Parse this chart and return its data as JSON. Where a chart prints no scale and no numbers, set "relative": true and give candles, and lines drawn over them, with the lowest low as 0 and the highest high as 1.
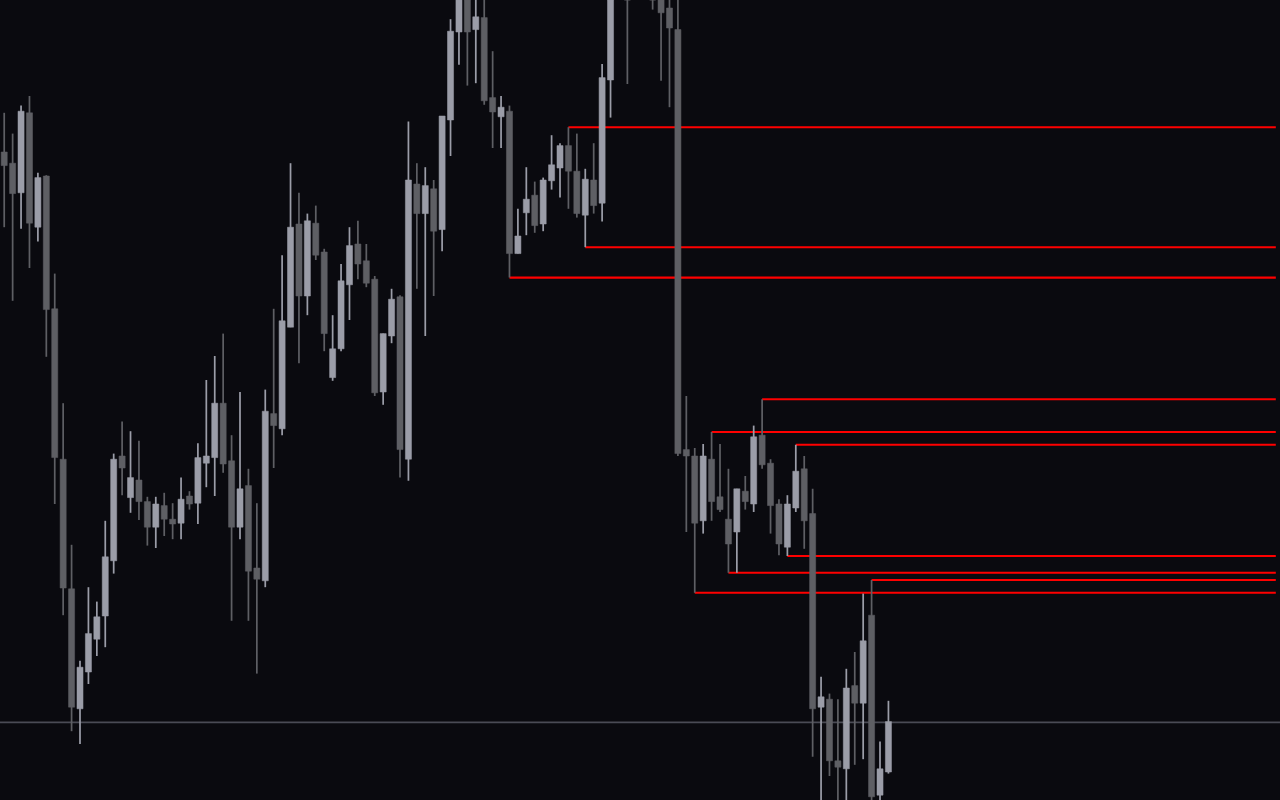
{
  "chart_data": {
    "type": "candlestick",
    "relative": true,
    "categories": [
      null,
      null,
      null,
      null,
      null,
      null,
      null,
      null,
      null,
      null,
      null,
      null,
      null,
      null,
      null,
      null,
      null,
      null,
      null,
      null,
      null,
      null,
      null,
      null,
      null,
      null,
      null,
      null,
      null,
      null,
      null,
      null,
      null,
      null,
      null,
      null,
      null,
      null,
      null,
      null,
      null,
      null,
      null,
      null,
      null,
      null,
      null,
      null,
      null,
      null,
      null,
      null,
      null,
      null,
      null,
      null,
      null,
      null,
      null,
      null,
      null,
      null,
      null,
      null,
      null,
      null,
      null,
      null,
      null,
      null,
      null,
      null,
      null,
      null,
      null,
      null,
      null,
      null,
      null,
      null,
      null,
      null,
      null,
      null,
      null,
      null,
      null,
      null,
      null,
      null,
      null,
      null,
      null,
      null,
      null,
      null,
      null,
      null,
      null,
      null,
      null,
      null,
      null,
      null,
      null,
      null,
      null,
      null,
      null,
      null,
      null,
      null,
      null,
      null,
      null,
      null,
      null,
      null,
      null,
      null,
      null,
      null,
      null,
      null,
      null,
      null,
      null,
      null,
      null,
      null,
      null,
      null,
      null,
      null,
      null,
      null,
      null,
      null,
      null,
      null,
      null,
      null,
      null,
      null,
      null,
      null,
      null,
      null,
      null,
      null,
      null,
      null
    ],
    "ohlc": [
      [
        0.81,
        0.859,
        0.716,
        0.793
      ],
      [
        0.796,
        0.833,
        0.624,
        0.758
      ],
      [
        0.759,
        0.868,
        0.714,
        0.861
      ],
      [
        0.859,
        0.88,
        0.665,
        0.721
      ],
      [
        0.716,
        0.784,
        0.698,
        0.778
      ],
      [
        0.78,
        0.781,
        0.554,
        0.613
      ],
      [
        0.614,
        0.658,
        0.37,
        0.428
      ],
      [
        0.426,
        0.496,
        0.231,
        0.265
      ],
      [
        0.264,
        0.319,
        0.086,
        0.116
      ],
      [
        0.114,
        0.174,
        0.07,
        0.166
      ],
      [
        0.16,
        0.266,
        0.145,
        0.208
      ],
      [
        0.201,
        0.248,
        0.18,
        0.229
      ],
      [
        0.23,
        0.349,
        0.191,
        0.304
      ],
      [
        0.299,
        0.433,
        0.283,
        0.426
      ],
      [
        0.43,
        0.473,
        0.381,
        0.415
      ],
      [
        0.378,
        0.461,
        0.359,
        0.403
      ],
      [
        0.4,
        0.449,
        0.35,
        0.373
      ],
      [
        0.373,
        0.379,
        0.318,
        0.341
      ],
      [
        0.341,
        0.379,
        0.315,
        0.37
      ],
      [
        0.368,
        0.384,
        0.33,
        0.351
      ],
      [
        0.351,
        0.371,
        0.326,
        0.345
      ],
      [
        0.346,
        0.403,
        0.326,
        0.376
      ],
      [
        0.38,
        0.386,
        0.363,
        0.37
      ],
      [
        0.371,
        0.446,
        0.345,
        0.428
      ],
      [
        0.421,
        0.525,
        0.391,
        0.43
      ],
      [
        0.428,
        0.555,
        0.38,
        0.496
      ],
      [
        0.496,
        0.583,
        0.409,
        0.42
      ],
      [
        0.424,
        0.456,
        0.224,
        0.341
      ],
      [
        0.341,
        0.51,
        0.326,
        0.389
      ],
      [
        0.393,
        0.414,
        0.224,
        0.286
      ],
      [
        0.29,
        0.371,
        0.158,
        0.276
      ],
      [
        0.274,
        0.513,
        0.266,
        0.486
      ],
      [
        0.483,
        0.614,
        0.415,
        0.468
      ],
      [
        0.464,
        0.681,
        0.456,
        0.599
      ],
      [
        0.591,
        0.796,
        0.591,
        0.716
      ],
      [
        0.72,
        0.759,
        0.546,
        0.63
      ],
      [
        0.63,
        0.733,
        0.606,
        0.724
      ],
      [
        0.721,
        0.743,
        0.675,
        0.681
      ],
      [
        0.685,
        0.689,
        0.561,
        0.583
      ],
      [
        0.528,
        0.606,
        0.524,
        0.564
      ],
      [
        0.564,
        0.67,
        0.561,
        0.649
      ],
      [
        0.644,
        0.716,
        0.6,
        0.693
      ],
      [
        0.695,
        0.724,
        0.651,
        0.67
      ],
      [
        0.674,
        0.695,
        0.641,
        0.646
      ],
      [
        0.651,
        0.655,
        0.505,
        0.509
      ],
      [
        0.51,
        0.583,
        0.494,
        0.583
      ],
      [
        0.58,
        0.639,
        0.571,
        0.626
      ],
      [
        0.629,
        0.631,
        0.403,
        0.438
      ],
      [
        0.426,
        0.848,
        0.399,
        0.775
      ],
      [
        0.77,
        0.796,
        0.639,
        0.733
      ],
      [
        0.733,
        0.791,
        0.58,
        0.768
      ],
      [
        0.764,
        0.775,
        0.63,
        0.711
      ],
      [
        0.713,
        0.855,
        0.686,
        0.855
      ],
      [
        0.85,
        0.976,
        0.805,
        0.961
      ],
      [
        0.96,
        1,
        0.919,
        1
      ],
      [
        1,
        1,
        0.893,
        0.96
      ],
      [
        0.963,
        1,
        0.896,
        0.979
      ],
      [
        0.978,
        1,
        0.869,
        0.874
      ],
      [
        0.878,
        0.936,
        0.815,
        0.86
      ],
      [
        0.854,
        0.88,
        0.815,
        0.866
      ],
      [
        0.861,
        0.868,
        0.653,
        0.683
      ],
      [
        0.683,
        0.739,
        0.683,
        0.705
      ],
      [
        0.734,
        0.791,
        0.706,
        0.751
      ],
      [
        0.756,
        0.773,
        0.709,
        0.718
      ],
      [
        0.72,
        0.778,
        0.711,
        0.775
      ],
      [
        0.774,
        0.831,
        0.763,
        0.794
      ],
      [
        0.79,
        0.821,
        0.753,
        0.818
      ],
      [
        0.818,
        0.841,
        0.739,
        0.786
      ],
      [
        0.786,
        0.833,
        0.728,
        0.733
      ],
      [
        0.731,
        0.789,
        0.691,
        0.776
      ],
      [
        0.775,
        0.821,
        0.733,
        0.743
      ],
      [
        0.746,
        0.92,
        0.723,
        0.903
      ],
      [
        0.9,
        1,
        0.853,
        1
      ],
      null,
      [
        1,
        1,
        0.895,
        1
      ],
      null,
      null,
      [
        1,
        1,
        0.988,
        1
      ],
      [
        1,
        1,
        0.899,
        0.984
      ],
      [
        0.99,
        1,
        0.866,
        0.965
      ],
      [
        0.963,
        1,
        0.43,
        0.433
      ],
      [
        0.438,
        0.505,
        0.335,
        0.43
      ],
      [
        0.43,
        0.44,
        0.259,
        0.346
      ],
      [
        0.349,
        0.445,
        0.333,
        0.43
      ],
      [
        0.426,
        0.46,
        0.349,
        0.373
      ],
      [
        0.379,
        0.445,
        0.36,
        0.363
      ],
      [
        0.351,
        0.414,
        0.284,
        0.32
      ],
      [
        0.335,
        0.389,
        0.284,
        0.389
      ],
      [
        0.386,
        0.405,
        0.363,
        0.373
      ],
      [
        0.37,
        0.468,
        0.36,
        0.454
      ],
      [
        0.456,
        0.501,
        0.414,
        0.419
      ],
      [
        0.421,
        0.426,
        0.333,
        0.368
      ],
      [
        0.37,
        0.376,
        0.306,
        0.32
      ],
      [
        0.316,
        0.381,
        0.305,
        0.37
      ],
      [
        0.365,
        0.444,
        0.36,
        0.411
      ],
      [
        0.414,
        0.43,
        0.314,
        0.349
      ],
      [
        0.358,
        0.389,
        0.054,
        0.114
      ],
      [
        0.116,
        0.154,
        0,
        0.129
      ],
      [
        0.126,
        0.133,
        0.03,
        0.049
      ],
      [
        0.049,
        0.126,
        0,
        0.041
      ],
      [
        0.039,
        0.164,
        0,
        0.14
      ],
      [
        0.143,
        0.185,
        0.044,
        0.121
      ],
      [
        0.121,
        0.258,
        0.051,
        0.199
      ],
      [
        0.231,
        0.275,
        0,
        0.004
      ],
      [
        0.006,
        0.073,
        0,
        0.039
      ],
      [
        0.035,
        0.124,
        0.033,
        0.098
      ],
      null,
      null,
      null,
      null,
      null,
      null,
      null,
      null,
      null,
      null,
      null,
      null,
      null,
      null,
      null,
      null,
      null,
      null,
      null,
      null,
      null,
      null,
      null,
      null,
      null,
      null,
      null,
      null,
      null,
      null,
      null,
      null,
      null,
      null,
      null,
      null,
      null,
      null,
      null,
      null,
      null,
      null,
      null,
      null,
      null,
      null
    ],
    "colors": [
      "#5e5f64",
      "#5e5f64",
      "#9b9da8",
      "#5e5f64",
      "#9b9da8",
      "#5e5f64",
      "#5e5f64",
      "#5e5f64",
      "#5e5f64",
      "#9b9da8",
      "#9b9da8",
      "#9b9da8",
      "#9b9da8",
      "#9b9da8",
      "#5e5f64",
      "#9b9da8",
      "#5e5f64",
      "#5e5f64",
      "#9b9da8",
      "#5e5f64",
      "#5e5f64",
      "#9b9da8",
      "#5e5f64",
      "#9b9da8",
      "#9b9da8",
      "#9b9da8",
      "#5e5f64",
      "#5e5f64",
      "#9b9da8",
      "#5e5f64",
      "#5e5f64",
      "#9b9da8",
      "#5e5f64",
      "#9b9da8",
      "#9b9da8",
      "#5e5f64",
      "#9b9da8",
      "#5e5f64",
      "#5e5f64",
      "#9b9da8",
      "#9b9da8",
      "#9b9da8",
      "#5e5f64",
      "#5e5f64",
      "#5e5f64",
      "#9b9da8",
      "#9b9da8",
      "#5e5f64",
      "#9b9da8",
      "#5e5f64",
      "#9b9da8",
      "#5e5f64",
      "#9b9da8",
      "#9b9da8",
      "#9b9da8",
      "#5e5f64",
      "#9b9da8",
      "#5e5f64",
      "#5e5f64",
      "#9b9da8",
      "#5e5f64",
      "#9b9da8",
      "#9b9da8",
      "#5e5f64",
      "#9b9da8",
      "#9b9da8",
      "#9b9da8",
      "#5e5f64",
      "#5e5f64",
      "#9b9da8",
      "#5e5f64",
      "#9b9da8",
      "#9b9da8",
      null,
      "#5e5f64",
      null,
      null,
      "#5e5f64",
      "#5e5f64",
      "#5e5f64",
      "#5e5f64",
      "#5e5f64",
      "#5e5f64",
      "#9b9da8",
      "#5e5f64",
      "#5e5f64",
      "#5e5f64",
      "#9b9da8",
      "#5e5f64",
      "#9b9da8",
      "#5e5f64",
      "#5e5f64",
      "#5e5f64",
      "#9b9da8",
      "#9b9da8",
      "#5e5f64",
      "#5e5f64",
      "#9b9da8",
      "#5e5f64",
      "#5e5f64",
      "#9b9da8",
      "#5e5f64",
      "#9b9da8",
      "#5e5f64",
      "#9b9da8",
      "#9b9da8",
      null,
      null,
      null,
      null,
      null,
      null,
      null,
      null,
      null,
      null,
      null,
      null,
      null,
      null,
      null,
      null,
      null,
      null,
      null,
      null,
      null,
      null,
      null,
      null,
      null,
      null,
      null,
      null,
      null,
      null,
      null,
      null,
      null,
      null,
      null,
      null,
      null,
      null,
      null,
      null,
      null,
      null,
      null,
      null,
      null,
      null
    ],
    "ref_lines": [
      {
        "axis": "y",
        "value": 0.097,
        "color": "#4a4b55"
      }
    ],
    "series": [
      {
        "type": "line",
        "color": "#ff0000",
        "values": [
          null,
          null,
          null,
          null,
          null,
          null,
          null,
          null,
          null,
          null,
          null,
          null,
          null,
          null,
          null,
          null,
          null,
          null,
          null,
          null,
          null,
          null,
          null,
          null,
          null,
          null,
          null,
          null,
          null,
          null,
          null,
          null,
          null,
          null,
          null,
          null,
          null,
          null,
          null,
          null,
          null,
          null,
          null,
          null,
          null,
          null,
          null,
          null,
          null,
          null,
          null,
          null,
          null,
          null,
          null,
          null,
          null,
          null,
          null,
          null,
          null,
          null,
          null,
          null,
          null,
          null,
          null,
          0.841,
          0.841,
          0.841,
          0.841,
          0.841,
          0.841,
          0.841,
          0.841,
          0.841,
          0.841,
          0.841,
          0.841,
          0.841,
          0.841,
          0.841,
          0.841,
          0.841,
          0.841,
          0.841,
          0.841,
          0.841,
          0.841,
          0.841,
          0.841,
          0.841,
          0.841,
          0.841,
          0.841,
          0.841,
          0.841,
          0.841,
          0.841,
          0.841,
          0.841,
          0.841,
          0.841,
          0.841,
          0.841,
          0.841,
          0.841,
          0.841,
          0.841,
          0.841,
          0.841,
          0.841,
          0.841,
          0.841,
          0.841,
          0.841,
          0.841,
          0.841,
          0.841,
          0.841,
          0.841,
          0.841,
          0.841,
          0.841,
          0.841,
          0.841,
          0.841,
          0.841,
          0.841,
          0.841,
          0.841,
          0.841,
          0.841,
          0.841,
          0.841,
          0.841,
          0.841,
          0.841,
          0.841,
          0.841,
          0.841,
          0.841,
          0.841,
          0.841,
          0.841,
          0.841,
          0.841,
          0.841,
          0.841,
          0.841,
          0.841,
          0.841
        ]
      },
      {
        "type": "line",
        "color": "#ff0000",
        "values": [
          null,
          null,
          null,
          null,
          null,
          null,
          null,
          null,
          null,
          null,
          null,
          null,
          null,
          null,
          null,
          null,
          null,
          null,
          null,
          null,
          null,
          null,
          null,
          null,
          null,
          null,
          null,
          null,
          null,
          null,
          null,
          null,
          null,
          null,
          null,
          null,
          null,
          null,
          null,
          null,
          null,
          null,
          null,
          null,
          null,
          null,
          null,
          null,
          null,
          null,
          null,
          null,
          null,
          null,
          null,
          null,
          null,
          null,
          null,
          null,
          null,
          null,
          null,
          null,
          null,
          null,
          null,
          null,
          null,
          0.691,
          0.691,
          0.691,
          0.691,
          0.691,
          0.691,
          0.691,
          0.691,
          0.691,
          0.691,
          0.691,
          0.691,
          0.691,
          0.691,
          0.691,
          0.691,
          0.691,
          0.691,
          0.691,
          0.691,
          0.691,
          0.691,
          0.691,
          0.691,
          0.691,
          0.691,
          0.691,
          0.691,
          0.691,
          0.691,
          0.691,
          0.691,
          0.691,
          0.691,
          0.691,
          0.691,
          0.691,
          0.691,
          0.691,
          0.691,
          0.691,
          0.691,
          0.691,
          0.691,
          0.691,
          0.691,
          0.691,
          0.691,
          0.691,
          0.691,
          0.691,
          0.691,
          0.691,
          0.691,
          0.691,
          0.691,
          0.691,
          0.691,
          0.691,
          0.691,
          0.691,
          0.691,
          0.691,
          0.691,
          0.691,
          0.691,
          0.691,
          0.691,
          0.691,
          0.691,
          0.691,
          0.691,
          0.691,
          0.691,
          0.691,
          0.691,
          0.691,
          0.691,
          0.691,
          0.691,
          0.691,
          0.691,
          0.691
        ]
      },
      {
        "type": "line",
        "color": "#ff0000",
        "values": [
          null,
          null,
          null,
          null,
          null,
          null,
          null,
          null,
          null,
          null,
          null,
          null,
          null,
          null,
          null,
          null,
          null,
          null,
          null,
          null,
          null,
          null,
          null,
          null,
          null,
          null,
          null,
          null,
          null,
          null,
          null,
          null,
          null,
          null,
          null,
          null,
          null,
          null,
          null,
          null,
          null,
          null,
          null,
          null,
          null,
          null,
          null,
          null,
          null,
          null,
          null,
          null,
          null,
          null,
          null,
          null,
          null,
          null,
          null,
          null,
          0.653,
          0.653,
          0.653,
          0.653,
          0.653,
          0.653,
          0.653,
          0.653,
          0.653,
          0.653,
          0.653,
          0.653,
          0.653,
          0.653,
          0.653,
          0.653,
          0.653,
          0.653,
          0.653,
          0.653,
          0.653,
          0.653,
          0.653,
          0.653,
          0.653,
          0.653,
          0.653,
          0.653,
          0.653,
          0.653,
          0.653,
          0.653,
          0.653,
          0.653,
          0.653,
          0.653,
          0.653,
          0.653,
          0.653,
          0.653,
          0.653,
          0.653,
          0.653,
          0.653,
          0.653,
          0.653,
          0.653,
          0.653,
          0.653,
          0.653,
          0.653,
          0.653,
          0.653,
          0.653,
          0.653,
          0.653,
          0.653,
          0.653,
          0.653,
          0.653,
          0.653,
          0.653,
          0.653,
          0.653,
          0.653,
          0.653,
          0.653,
          0.653,
          0.653,
          0.653,
          0.653,
          0.653,
          0.653,
          0.653,
          0.653,
          0.653,
          0.653,
          0.653,
          0.653,
          0.653,
          0.653,
          0.653,
          0.653,
          0.653,
          0.653,
          0.653,
          0.653,
          0.653,
          0.653,
          0.653,
          0.653,
          0.653
        ]
      },
      {
        "type": "line",
        "color": "#ff0000",
        "values": [
          null,
          null,
          null,
          null,
          null,
          null,
          null,
          null,
          null,
          null,
          null,
          null,
          null,
          null,
          null,
          null,
          null,
          null,
          null,
          null,
          null,
          null,
          null,
          null,
          null,
          null,
          null,
          null,
          null,
          null,
          null,
          null,
          null,
          null,
          null,
          null,
          null,
          null,
          null,
          null,
          null,
          null,
          null,
          null,
          null,
          null,
          null,
          null,
          null,
          null,
          null,
          null,
          null,
          null,
          null,
          null,
          null,
          null,
          null,
          null,
          null,
          null,
          null,
          null,
          null,
          null,
          null,
          null,
          null,
          null,
          null,
          null,
          null,
          null,
          null,
          null,
          null,
          null,
          null,
          null,
          null,
          null,
          null,
          null,
          null,
          null,
          null,
          null,
          null,
          null,
          0.501,
          0.501,
          0.501,
          0.501,
          0.501,
          0.501,
          0.501,
          0.501,
          0.501,
          0.501,
          0.501,
          0.501,
          0.501,
          0.501,
          0.501,
          0.501,
          0.501,
          0.501,
          0.501,
          0.501,
          0.501,
          0.501,
          0.501,
          0.501,
          0.501,
          0.501,
          0.501,
          0.501,
          0.501,
          0.501,
          0.501,
          0.501,
          0.501,
          0.501,
          0.501,
          0.501,
          0.501,
          0.501,
          0.501,
          0.501,
          0.501,
          0.501,
          0.501,
          0.501,
          0.501,
          0.501,
          0.501,
          0.501,
          0.501,
          0.501,
          0.501,
          0.501,
          0.501,
          0.501,
          0.501,
          0.501,
          0.501,
          0.501,
          0.501,
          0.501,
          0.501,
          0.501
        ]
      },
      {
        "type": "line",
        "color": "#ff0000",
        "values": [
          null,
          null,
          null,
          null,
          null,
          null,
          null,
          null,
          null,
          null,
          null,
          null,
          null,
          null,
          null,
          null,
          null,
          null,
          null,
          null,
          null,
          null,
          null,
          null,
          null,
          null,
          null,
          null,
          null,
          null,
          null,
          null,
          null,
          null,
          null,
          null,
          null,
          null,
          null,
          null,
          null,
          null,
          null,
          null,
          null,
          null,
          null,
          null,
          null,
          null,
          null,
          null,
          null,
          null,
          null,
          null,
          null,
          null,
          null,
          null,
          null,
          null,
          null,
          null,
          null,
          null,
          null,
          null,
          null,
          null,
          null,
          null,
          null,
          null,
          null,
          null,
          null,
          null,
          null,
          null,
          null,
          null,
          null,
          null,
          0.46,
          0.46,
          0.46,
          0.46,
          0.46,
          0.46,
          0.46,
          0.46,
          0.46,
          0.46,
          0.46,
          0.46,
          0.46,
          0.46,
          0.46,
          0.46,
          0.46,
          0.46,
          0.46,
          0.46,
          0.46,
          0.46,
          0.46,
          0.46,
          0.46,
          0.46,
          0.46,
          0.46,
          0.46,
          0.46,
          0.46,
          0.46,
          0.46,
          0.46,
          0.46,
          0.46,
          0.46,
          0.46,
          0.46,
          0.46,
          0.46,
          0.46,
          0.46,
          0.46,
          0.46,
          0.46,
          0.46,
          0.46,
          0.46,
          0.46,
          0.46,
          0.46,
          0.46,
          0.46,
          0.46,
          0.46,
          0.46,
          0.46,
          0.46,
          0.46,
          0.46,
          0.46,
          0.46,
          0.46,
          0.46,
          0.46,
          0.46,
          0.46
        ]
      },
      {
        "type": "line",
        "color": "#ff0000",
        "values": [
          null,
          null,
          null,
          null,
          null,
          null,
          null,
          null,
          null,
          null,
          null,
          null,
          null,
          null,
          null,
          null,
          null,
          null,
          null,
          null,
          null,
          null,
          null,
          null,
          null,
          null,
          null,
          null,
          null,
          null,
          null,
          null,
          null,
          null,
          null,
          null,
          null,
          null,
          null,
          null,
          null,
          null,
          null,
          null,
          null,
          null,
          null,
          null,
          null,
          null,
          null,
          null,
          null,
          null,
          null,
          null,
          null,
          null,
          null,
          null,
          null,
          null,
          null,
          null,
          null,
          null,
          null,
          null,
          null,
          null,
          null,
          null,
          null,
          null,
          null,
          null,
          null,
          null,
          null,
          null,
          null,
          null,
          null,
          null,
          null,
          null,
          null,
          null,
          null,
          null,
          null,
          null,
          null,
          null,
          0.444,
          0.444,
          0.444,
          0.444,
          0.444,
          0.444,
          0.444,
          0.444,
          0.444,
          0.444,
          0.444,
          0.444,
          0.444,
          0.444,
          0.444,
          0.444,
          0.444,
          0.444,
          0.444,
          0.444,
          0.444,
          0.444,
          0.444,
          0.444,
          0.444,
          0.444,
          0.444,
          0.444,
          0.444,
          0.444,
          0.444,
          0.444,
          0.444,
          0.444,
          0.444,
          0.444,
          0.444,
          0.444,
          0.444,
          0.444,
          0.444,
          0.444,
          0.444,
          0.444,
          0.444,
          0.444,
          0.444,
          0.444,
          0.444,
          0.444,
          0.444,
          0.444,
          0.444,
          0.444,
          0.444,
          0.444,
          0.444,
          0.444
        ]
      },
      {
        "type": "line",
        "color": "#ff0000",
        "values": [
          null,
          null,
          null,
          null,
          null,
          null,
          null,
          null,
          null,
          null,
          null,
          null,
          null,
          null,
          null,
          null,
          null,
          null,
          null,
          null,
          null,
          null,
          null,
          null,
          null,
          null,
          null,
          null,
          null,
          null,
          null,
          null,
          null,
          null,
          null,
          null,
          null,
          null,
          null,
          null,
          null,
          null,
          null,
          null,
          null,
          null,
          null,
          null,
          null,
          null,
          null,
          null,
          null,
          null,
          null,
          null,
          null,
          null,
          null,
          null,
          null,
          null,
          null,
          null,
          null,
          null,
          null,
          null,
          null,
          null,
          null,
          null,
          null,
          null,
          null,
          null,
          null,
          null,
          null,
          null,
          null,
          null,
          null,
          null,
          null,
          null,
          null,
          null,
          null,
          null,
          null,
          null,
          null,
          0.305,
          0.305,
          0.305,
          0.305,
          0.305,
          0.305,
          0.305,
          0.305,
          0.305,
          0.305,
          0.305,
          0.305,
          0.305,
          0.305,
          0.305,
          0.305,
          0.305,
          0.305,
          0.305,
          0.305,
          0.305,
          0.305,
          0.305,
          0.305,
          0.305,
          0.305,
          0.305,
          0.305,
          0.305,
          0.305,
          0.305,
          0.305,
          0.305,
          0.305,
          0.305,
          0.305,
          0.305,
          0.305,
          0.305,
          0.305,
          0.305,
          0.305,
          0.305,
          0.305,
          0.305,
          0.305,
          0.305,
          0.305,
          0.305,
          0.305,
          0.305,
          0.305,
          0.305,
          0.305,
          0.305,
          0.305,
          0.305,
          0.305,
          0.305
        ]
      },
      {
        "type": "line",
        "color": "#ff0000",
        "values": [
          null,
          null,
          null,
          null,
          null,
          null,
          null,
          null,
          null,
          null,
          null,
          null,
          null,
          null,
          null,
          null,
          null,
          null,
          null,
          null,
          null,
          null,
          null,
          null,
          null,
          null,
          null,
          null,
          null,
          null,
          null,
          null,
          null,
          null,
          null,
          null,
          null,
          null,
          null,
          null,
          null,
          null,
          null,
          null,
          null,
          null,
          null,
          null,
          null,
          null,
          null,
          null,
          null,
          null,
          null,
          null,
          null,
          null,
          null,
          null,
          null,
          null,
          null,
          null,
          null,
          null,
          null,
          null,
          null,
          null,
          null,
          null,
          null,
          null,
          null,
          null,
          null,
          null,
          null,
          null,
          null,
          null,
          null,
          null,
          null,
          null,
          0.284,
          0.284,
          0.284,
          0.284,
          0.284,
          0.284,
          0.284,
          0.284,
          0.284,
          0.284,
          0.284,
          0.284,
          0.284,
          0.284,
          0.284,
          0.284,
          0.284,
          0.284,
          0.284,
          0.284,
          0.284,
          0.284,
          0.284,
          0.284,
          0.284,
          0.284,
          0.284,
          0.284,
          0.284,
          0.284,
          0.284,
          0.284,
          0.284,
          0.284,
          0.284,
          0.284,
          0.284,
          0.284,
          0.284,
          0.284,
          0.284,
          0.284,
          0.284,
          0.284,
          0.284,
          0.284,
          0.284,
          0.284,
          0.284,
          0.284,
          0.284,
          0.284,
          0.284,
          0.284,
          0.284,
          0.284,
          0.284,
          0.284,
          0.284,
          0.284,
          0.284,
          0.284,
          0.284,
          0.284,
          0.284,
          0.284
        ]
      },
      {
        "type": "line",
        "color": "#ff0000",
        "values": [
          null,
          null,
          null,
          null,
          null,
          null,
          null,
          null,
          null,
          null,
          null,
          null,
          null,
          null,
          null,
          null,
          null,
          null,
          null,
          null,
          null,
          null,
          null,
          null,
          null,
          null,
          null,
          null,
          null,
          null,
          null,
          null,
          null,
          null,
          null,
          null,
          null,
          null,
          null,
          null,
          null,
          null,
          null,
          null,
          null,
          null,
          null,
          null,
          null,
          null,
          null,
          null,
          null,
          null,
          null,
          null,
          null,
          null,
          null,
          null,
          null,
          null,
          null,
          null,
          null,
          null,
          null,
          null,
          null,
          null,
          null,
          null,
          null,
          null,
          null,
          null,
          null,
          null,
          null,
          null,
          null,
          null,
          null,
          null,
          null,
          null,
          null,
          null,
          null,
          null,
          null,
          null,
          null,
          null,
          null,
          null,
          null,
          null,
          null,
          null,
          null,
          null,
          null,
          0.275,
          0.275,
          0.275,
          0.275,
          0.275,
          0.275,
          0.275,
          0.275,
          0.275,
          0.275,
          0.275,
          0.275,
          0.275,
          0.275,
          0.275,
          0.275,
          0.275,
          0.275,
          0.275,
          0.275,
          0.275,
          0.275,
          0.275,
          0.275,
          0.275,
          0.275,
          0.275,
          0.275,
          0.275,
          0.275,
          0.275,
          0.275,
          0.275,
          0.275,
          0.275,
          0.275,
          0.275,
          0.275,
          0.275,
          0.275,
          0.275,
          0.275,
          0.275,
          0.275,
          0.275,
          0.275,
          0.275,
          0.275,
          0.275
        ]
      },
      {
        "type": "line",
        "color": "#ff0000",
        "values": [
          null,
          null,
          null,
          null,
          null,
          null,
          null,
          null,
          null,
          null,
          null,
          null,
          null,
          null,
          null,
          null,
          null,
          null,
          null,
          null,
          null,
          null,
          null,
          null,
          null,
          null,
          null,
          null,
          null,
          null,
          null,
          null,
          null,
          null,
          null,
          null,
          null,
          null,
          null,
          null,
          null,
          null,
          null,
          null,
          null,
          null,
          null,
          null,
          null,
          null,
          null,
          null,
          null,
          null,
          null,
          null,
          null,
          null,
          null,
          null,
          null,
          null,
          null,
          null,
          null,
          null,
          null,
          null,
          null,
          null,
          null,
          null,
          null,
          null,
          null,
          null,
          null,
          null,
          null,
          null,
          null,
          null,
          0.259,
          0.259,
          0.259,
          0.259,
          0.259,
          0.259,
          0.259,
          0.259,
          0.259,
          0.259,
          0.259,
          0.259,
          0.259,
          0.259,
          0.259,
          0.259,
          0.259,
          0.259,
          0.259,
          0.259,
          0.259,
          0.259,
          0.259,
          0.259,
          0.259,
          0.259,
          0.259,
          0.259,
          0.259,
          0.259,
          0.259,
          0.259,
          0.259,
          0.259,
          0.259,
          0.259,
          0.259,
          0.259,
          0.259,
          0.259,
          0.259,
          0.259,
          0.259,
          0.259,
          0.259,
          0.259,
          0.259,
          0.259,
          0.259,
          0.259,
          0.259,
          0.259,
          0.259,
          0.259,
          0.259,
          0.259,
          0.259,
          0.259,
          0.259,
          0.259,
          0.259,
          0.259,
          0.259,
          0.259,
          0.259,
          0.259,
          0.259,
          0.259,
          0.259,
          0.259
        ]
      }
    ]
  }
}
